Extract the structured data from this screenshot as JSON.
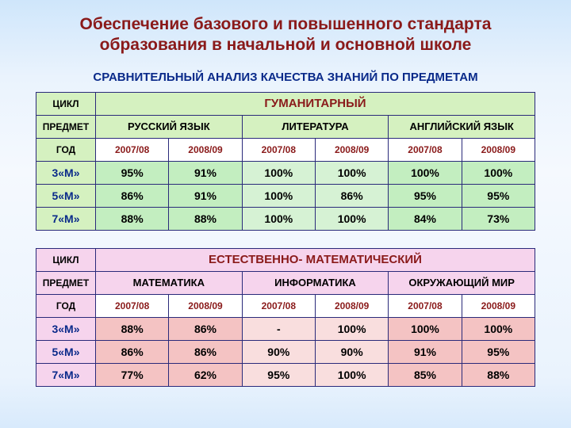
{
  "title_line1": "Обеспечение базового и повышенного стандарта",
  "title_line2": "образования в начальной и основной школе",
  "title_color": "#8a1a1a",
  "subtitle": "СРАВНИТЕЛЬНЫЙ АНАЛИЗ КАЧЕСТВА ЗНАНИЙ ПО ПРЕДМЕТАМ",
  "subtitle_color": "#0a2a8a",
  "row_labels": {
    "cycle": "ЦИКЛ",
    "subject": "ПРЕДМЕТ",
    "year": "ГОД"
  },
  "grade_labels": [
    "3«М»",
    "5«М»",
    "7«М»"
  ],
  "grade_label_color": "#0a2a8a",
  "tables": [
    {
      "cycle_name": "ГУМАНИТАРНЫЙ",
      "cycle_color": "#8a1a1a",
      "cycle_bg": "#d5f1c0",
      "header_bg": "#d5f1c0",
      "year_bg": "#ffffff",
      "data_bg_a": "#c3eec0",
      "data_bg_b": "#d6f2d4",
      "subjects": [
        "РУССКИЙ ЯЗЫК",
        "ЛИТЕРАТУРА",
        "АНГЛИЙСКИЙ ЯЗЫК"
      ],
      "years": [
        "2007/08",
        "2008/09",
        "2007/08",
        "2008/09",
        "2007/08",
        "2008/09"
      ],
      "year_color": "#8a1a1a",
      "rows": [
        [
          "95%",
          "91%",
          "100%",
          "100%",
          "100%",
          "100%"
        ],
        [
          "86%",
          "91%",
          "100%",
          "86%",
          "95%",
          "95%"
        ],
        [
          "88%",
          "88%",
          "100%",
          "100%",
          "84%",
          "73%"
        ]
      ]
    },
    {
      "cycle_name": "ЕСТЕСТВЕННО- МАТЕМАТИЧЕСКИЙ",
      "cycle_color": "#8a1a1a",
      "cycle_bg": "#f6d4ed",
      "header_bg": "#f6d4ed",
      "year_bg": "#ffffff",
      "data_bg_a": "#f4c3c3",
      "data_bg_b": "#f9dede",
      "subjects": [
        "МАТЕМАТИКА",
        "ИНФОРМАТИКА",
        "ОКРУЖАЮЩИЙ МИР"
      ],
      "years": [
        "2007/08",
        "2008/09",
        "2007/08",
        "2008/09",
        "2007/08",
        "2008/09"
      ],
      "year_color": "#8a1a1a",
      "rows": [
        [
          "88%",
          "86%",
          "-",
          "100%",
          "100%",
          "100%"
        ],
        [
          "86%",
          "86%",
          "90%",
          "90%",
          "91%",
          "95%"
        ],
        [
          "77%",
          "62%",
          "95%",
          "100%",
          "85%",
          "88%"
        ]
      ]
    }
  ]
}
